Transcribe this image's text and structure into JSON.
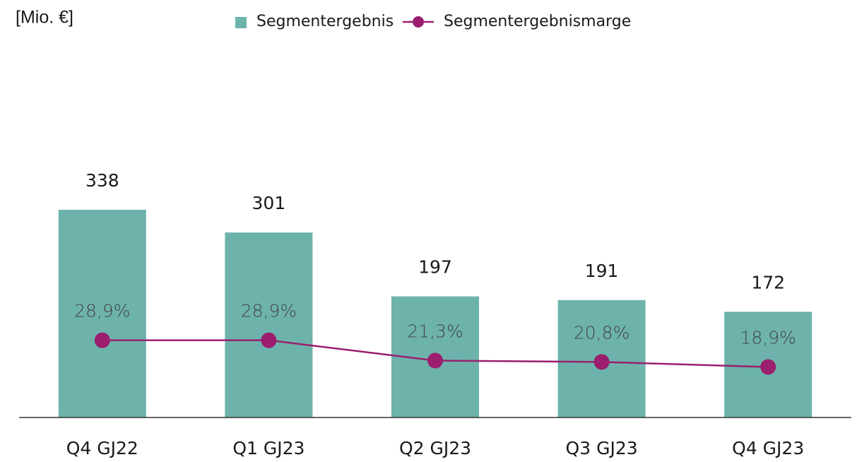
{
  "chart_data": {
    "type": "bar-line",
    "ylabel": "[Mio. €]",
    "categories": [
      "Q4 GJ22",
      "Q1 GJ23",
      "Q2 GJ23",
      "Q3 GJ23",
      "Q4 GJ23"
    ],
    "series": [
      {
        "name": "Segmentergebnis",
        "type": "bar",
        "color": "#6db3ac",
        "values": [
          338,
          301,
          197,
          191,
          172
        ]
      },
      {
        "name": "Segmentergebnismarge",
        "type": "line",
        "axis": "y2",
        "color": "#9b1e6f",
        "values": [
          28.9,
          28.9,
          21.3,
          20.8,
          18.9
        ],
        "value_labels": [
          "28,9%",
          "28,9%",
          "21,3%",
          "20,8%",
          "18,9%"
        ]
      }
    ],
    "ylim": [
      0,
      400
    ],
    "y2lim": [
      0,
      92
    ],
    "legend": "top"
  }
}
